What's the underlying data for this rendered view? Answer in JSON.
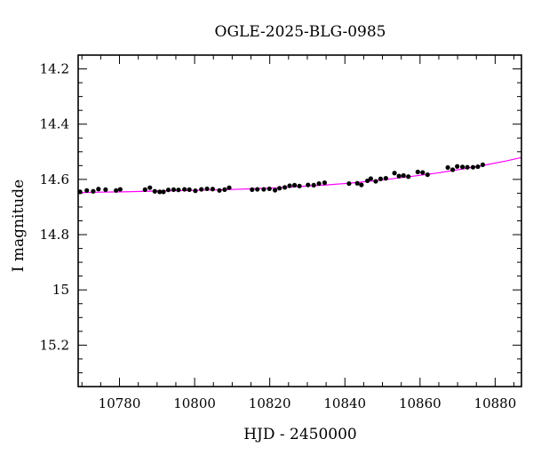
{
  "chart_data": {
    "type": "scatter",
    "title": "OGLE-2025-BLG-0985",
    "xlabel": "HJD - 2450000",
    "ylabel": "I magnitude",
    "xlim": [
      10769,
      10887
    ],
    "ylim": [
      15.35,
      14.15
    ],
    "y_inverted": true,
    "grid": false,
    "x_ticks": [
      10780,
      10800,
      10820,
      10840,
      10860,
      10880
    ],
    "x_tick_labels": [
      "10780",
      "10800",
      "10820",
      "10840",
      "10860",
      "10880"
    ],
    "y_ticks": [
      14.2,
      14.4,
      14.6,
      14.8,
      15,
      15.2
    ],
    "y_tick_labels": [
      "14.2",
      "14.4",
      "14.6",
      "14.8",
      "15",
      "15.2"
    ],
    "colors": {
      "points": "#000000",
      "model": "#ff00ff",
      "frame": "#000000"
    },
    "series": [
      {
        "kind": "points",
        "x": [
          10769.5,
          10771.3,
          10773.0,
          10774.4,
          10776.3,
          10779.1,
          10780.2,
          10786.8,
          10788.1,
          10789.4,
          10790.7,
          10791.7,
          10793.0,
          10794.4,
          10795.7,
          10797.3,
          10798.6,
          10800.2,
          10801.8,
          10803.3,
          10804.8,
          10806.6,
          10808.0,
          10809.2,
          10815.3,
          10816.7,
          10818.4,
          10819.9,
          10821.4,
          10822.6,
          10824.0,
          10825.3,
          10826.6,
          10827.9,
          10830.2,
          10831.7,
          10833.1,
          10834.6,
          10841.1,
          10843.3,
          10844.4,
          10846.0,
          10846.9,
          10848.2,
          10849.5,
          10850.9,
          10853.2,
          10854.4,
          10855.6,
          10856.9,
          10859.4,
          10860.7,
          10862.0,
          10867.4,
          10868.7,
          10869.9,
          10871.3,
          10872.6,
          10874.1,
          10875.4,
          10876.7
        ],
        "y": [
          14.645,
          14.64,
          14.643,
          14.635,
          14.637,
          14.64,
          14.636,
          14.637,
          14.63,
          14.643,
          14.645,
          14.645,
          14.638,
          14.637,
          14.638,
          14.636,
          14.637,
          14.641,
          14.636,
          14.634,
          14.635,
          14.64,
          14.637,
          14.63,
          14.637,
          14.636,
          14.636,
          14.634,
          14.639,
          14.632,
          14.629,
          14.623,
          14.621,
          14.624,
          14.62,
          14.621,
          14.615,
          14.612,
          14.615,
          14.614,
          14.62,
          14.605,
          14.597,
          14.607,
          14.598,
          14.596,
          14.577,
          14.588,
          14.586,
          14.59,
          14.573,
          14.575,
          14.583,
          14.557,
          14.565,
          14.553,
          14.555,
          14.556,
          14.556,
          14.554,
          14.547
        ]
      },
      {
        "kind": "model",
        "x": [
          10769,
          10775,
          10781,
          10787,
          10793,
          10799,
          10805,
          10811,
          10817,
          10823,
          10829,
          10835,
          10841,
          10847,
          10853,
          10859,
          10865,
          10871,
          10877,
          10883,
          10887
        ],
        "y": [
          14.648,
          14.646,
          14.645,
          14.643,
          14.641,
          14.64,
          14.638,
          14.636,
          14.633,
          14.63,
          14.625,
          14.62,
          14.614,
          14.606,
          14.597,
          14.587,
          14.576,
          14.563,
          14.549,
          14.533,
          14.521
        ]
      }
    ]
  }
}
